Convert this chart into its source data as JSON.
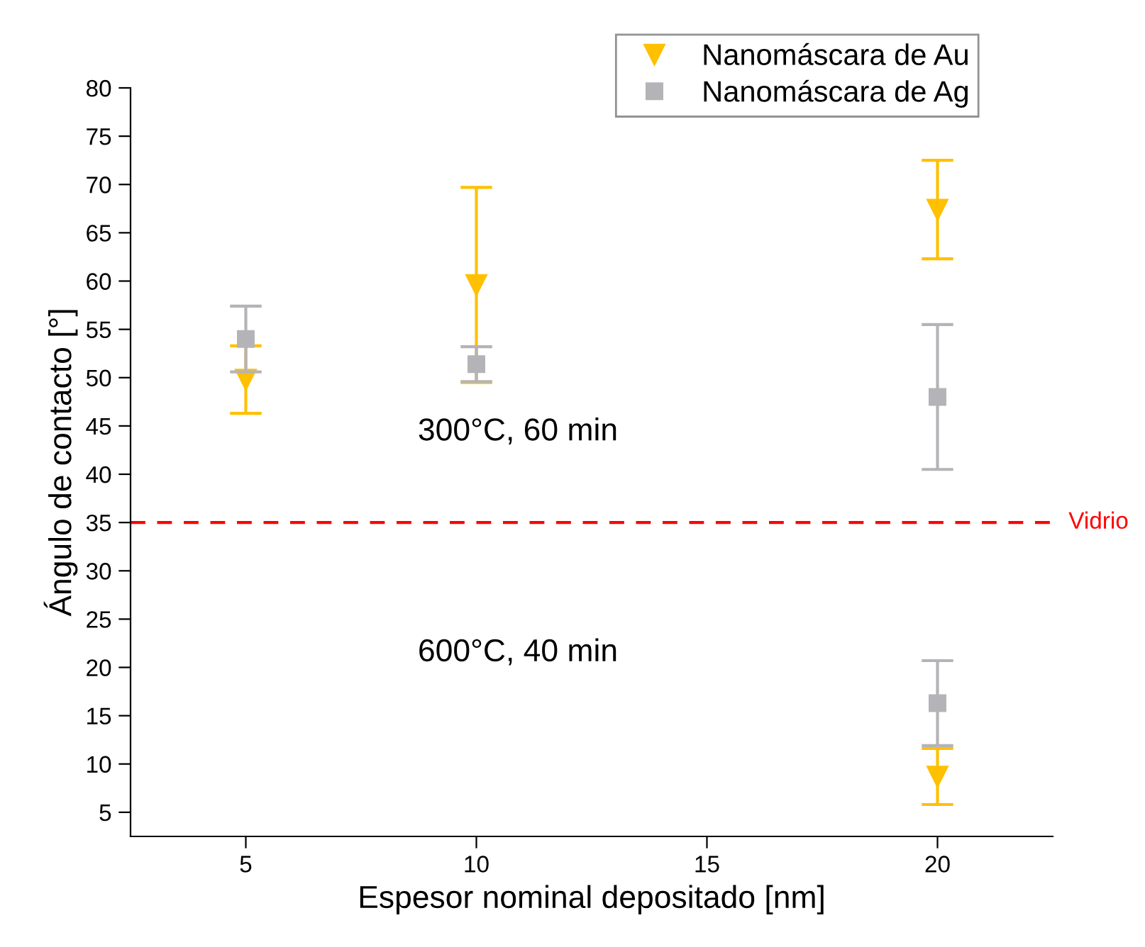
{
  "chart_data": {
    "type": "scatter",
    "xlabel": "Espesor nominal depositado [nm]",
    "ylabel": "Ángulo de contacto [°]",
    "xlim": [
      2.5,
      22.5
    ],
    "xticks": [
      5,
      10,
      15,
      20
    ],
    "ylim": [
      2.5,
      80
    ],
    "yticks": [
      5,
      10,
      15,
      20,
      25,
      30,
      35,
      40,
      45,
      50,
      55,
      60,
      65,
      70,
      75,
      80
    ],
    "series": [
      {
        "name": "Nanomáscara de Au",
        "color": "#ffc000",
        "marker": "triangle",
        "x": [
          5,
          10,
          20,
          20
        ],
        "values": [
          49.8,
          59.6,
          67.4,
          8.7
        ],
        "errors": [
          3.5,
          10.1,
          5.1,
          2.9
        ]
      },
      {
        "name": "Nanomáscara de Ag",
        "color": "#b4b4b8",
        "marker": "square",
        "x": [
          5,
          10,
          20,
          20
        ],
        "values": [
          54.0,
          51.4,
          48.0,
          16.3
        ],
        "errors": [
          3.4,
          1.8,
          7.5,
          4.4
        ]
      }
    ],
    "ref_lines": [
      {
        "axis": "y",
        "value": 35,
        "label": "Vidrio",
        "color": "#ff0000",
        "line_style": "dashed"
      }
    ],
    "annotations": [
      "300°C, 60 min",
      "600°C, 40 min"
    ],
    "legend": "top right",
    "grid": false
  }
}
